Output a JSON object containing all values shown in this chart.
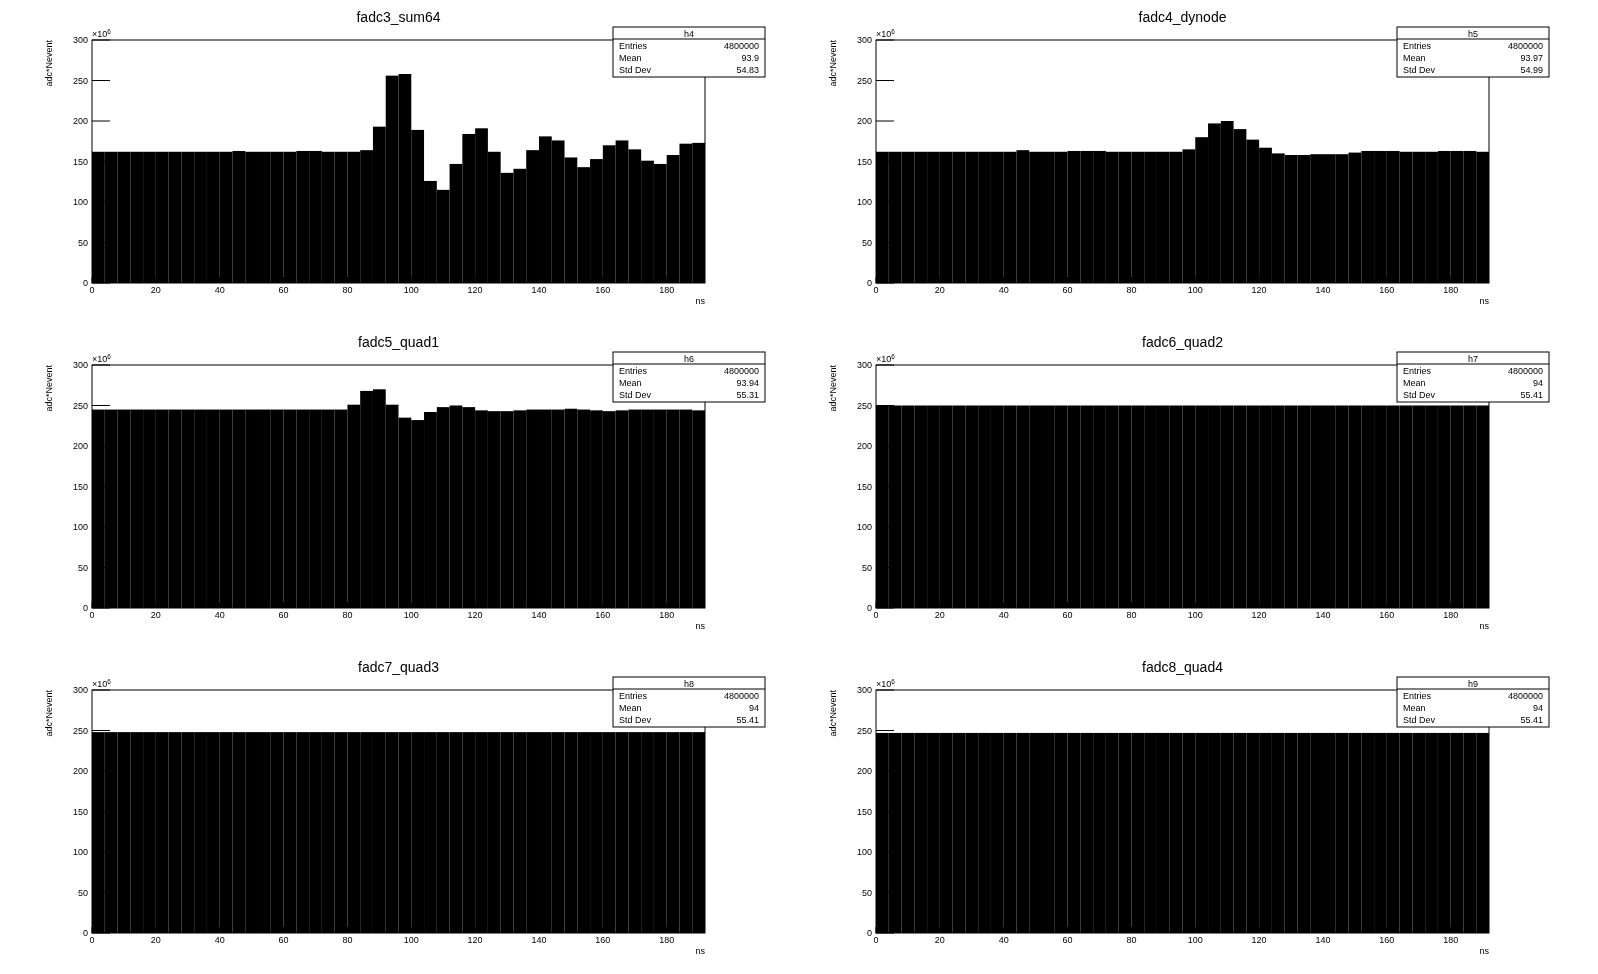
{
  "chart_data": [
    {
      "type": "histogram",
      "title": "fadc3_sum64",
      "xlabel": "ns",
      "ylabel": "adc*Nevent",
      "color": "#000000",
      "bins": [
        0,
        4,
        8,
        12,
        16,
        20,
        24,
        28,
        32,
        36,
        40,
        44,
        48,
        52,
        56,
        60,
        64,
        68,
        72,
        76,
        80,
        84,
        88,
        92,
        96,
        100,
        104,
        108,
        112,
        116,
        120,
        124,
        128,
        132,
        136,
        140,
        144,
        148,
        152,
        156,
        160,
        164,
        168,
        172,
        176,
        180,
        184,
        188,
        192
      ],
      "values": [
        162,
        162,
        162,
        162,
        162,
        162,
        162,
        162,
        162,
        162,
        162,
        163,
        162,
        162,
        162,
        162,
        163,
        163,
        162,
        162,
        162,
        164,
        193,
        256,
        258,
        189,
        126,
        115,
        147,
        184,
        191,
        162,
        136,
        141,
        164,
        181,
        176,
        155,
        143,
        153,
        170,
        176,
        165,
        151,
        147,
        158,
        172,
        173
      ],
      "xlim": [
        0,
        192
      ],
      "ylim": [
        0,
        300
      ],
      "xticks": [
        0,
        20,
        40,
        60,
        80,
        100,
        120,
        140,
        160,
        180
      ],
      "yticks": [
        0,
        50,
        100,
        150,
        200,
        250,
        300
      ],
      "annotations": [
        "×10$^{6}$",
        "h4",
        "Entries",
        "4800000",
        "Mean",
        "93.9",
        "Std Dev",
        "54.83"
      ]
    },
    {
      "type": "histogram",
      "title": "fadc4_dynode",
      "xlabel": "ns",
      "ylabel": "adc*Nevent",
      "color": "#000000",
      "bins": [
        0,
        4,
        8,
        12,
        16,
        20,
        24,
        28,
        32,
        36,
        40,
        44,
        48,
        52,
        56,
        60,
        64,
        68,
        72,
        76,
        80,
        84,
        88,
        92,
        96,
        100,
        104,
        108,
        112,
        116,
        120,
        124,
        128,
        132,
        136,
        140,
        144,
        148,
        152,
        156,
        160,
        164,
        168,
        172,
        176,
        180,
        184,
        188,
        192
      ],
      "values": [
        162,
        162,
        162,
        162,
        162,
        162,
        162,
        162,
        162,
        162,
        162,
        164,
        162,
        162,
        162,
        163,
        163,
        163,
        162,
        162,
        162,
        162,
        162,
        162,
        165,
        180,
        197,
        200,
        190,
        177,
        167,
        160,
        158,
        158,
        159,
        159,
        159,
        161,
        163,
        163,
        163,
        162,
        162,
        162,
        163,
        163,
        163,
        162
      ],
      "xlim": [
        0,
        192
      ],
      "ylim": [
        0,
        300
      ],
      "xticks": [
        0,
        20,
        40,
        60,
        80,
        100,
        120,
        140,
        160,
        180
      ],
      "yticks": [
        0,
        50,
        100,
        150,
        200,
        250,
        300
      ],
      "annotations": [
        "×10$^{6}$",
        "h5",
        "Entries",
        "4800000",
        "Mean",
        "93.97",
        "Std Dev",
        "54.99"
      ]
    },
    {
      "type": "histogram",
      "title": "fadc5_quad1",
      "xlabel": "ns",
      "ylabel": "adc*Nevent",
      "color": "#000000",
      "bins": [
        0,
        4,
        8,
        12,
        16,
        20,
        24,
        28,
        32,
        36,
        40,
        44,
        48,
        52,
        56,
        60,
        64,
        68,
        72,
        76,
        80,
        84,
        88,
        92,
        96,
        100,
        104,
        108,
        112,
        116,
        120,
        124,
        128,
        132,
        136,
        140,
        144,
        148,
        152,
        156,
        160,
        164,
        168,
        172,
        176,
        180,
        184,
        188,
        192
      ],
      "values": [
        245,
        245,
        245,
        245,
        245,
        245,
        245,
        245,
        245,
        245,
        245,
        245,
        245,
        245,
        245,
        245,
        245,
        245,
        245,
        245,
        251,
        268,
        270,
        251,
        235,
        232,
        242,
        248,
        250,
        248,
        244,
        243,
        243,
        244,
        245,
        245,
        245,
        246,
        245,
        244,
        243,
        244,
        245,
        245,
        245,
        245,
        245,
        244
      ],
      "xlim": [
        0,
        192
      ],
      "ylim": [
        0,
        300
      ],
      "xticks": [
        0,
        20,
        40,
        60,
        80,
        100,
        120,
        140,
        160,
        180
      ],
      "yticks": [
        0,
        50,
        100,
        150,
        200,
        250,
        300
      ],
      "annotations": [
        "×10$^{6}$",
        "h6",
        "Entries",
        "4800000",
        "Mean",
        "93.94",
        "Std Dev",
        "55.31"
      ]
    },
    {
      "type": "histogram",
      "title": "fadc6_quad2",
      "xlabel": "ns",
      "ylabel": "adc*Nevent",
      "color": "#000000",
      "bins": [
        0,
        4,
        8,
        12,
        16,
        20,
        24,
        28,
        32,
        36,
        40,
        44,
        48,
        52,
        56,
        60,
        64,
        68,
        72,
        76,
        80,
        84,
        88,
        92,
        96,
        100,
        104,
        108,
        112,
        116,
        120,
        124,
        128,
        132,
        136,
        140,
        144,
        148,
        152,
        156,
        160,
        164,
        168,
        172,
        176,
        180,
        184,
        188,
        192
      ],
      "values": [
        250,
        250,
        250,
        250,
        250,
        250,
        250,
        250,
        250,
        250,
        250,
        250,
        250,
        250,
        250,
        250,
        250,
        250,
        250,
        250,
        250,
        250,
        250,
        250,
        250,
        250,
        250,
        250,
        250,
        250,
        250,
        250,
        250,
        250,
        250,
        250,
        250,
        250,
        250,
        250,
        250,
        250,
        250,
        250,
        250,
        250,
        250,
        250
      ],
      "xlim": [
        0,
        192
      ],
      "ylim": [
        0,
        300
      ],
      "xticks": [
        0,
        20,
        40,
        60,
        80,
        100,
        120,
        140,
        160,
        180
      ],
      "yticks": [
        0,
        50,
        100,
        150,
        200,
        250,
        300
      ],
      "annotations": [
        "×10$^{6}$",
        "h7",
        "Entries",
        "4800000",
        "Mean",
        "94",
        "Std Dev",
        "55.41"
      ]
    },
    {
      "type": "histogram",
      "title": "fadc7_quad3",
      "xlabel": "ns",
      "ylabel": "adc*Nevent",
      "color": "#000000",
      "bins": [
        0,
        4,
        8,
        12,
        16,
        20,
        24,
        28,
        32,
        36,
        40,
        44,
        48,
        52,
        56,
        60,
        64,
        68,
        72,
        76,
        80,
        84,
        88,
        92,
        96,
        100,
        104,
        108,
        112,
        116,
        120,
        124,
        128,
        132,
        136,
        140,
        144,
        148,
        152,
        156,
        160,
        164,
        168,
        172,
        176,
        180,
        184,
        188,
        192
      ],
      "values": [
        248,
        248,
        248,
        248,
        248,
        248,
        248,
        248,
        248,
        248,
        248,
        248,
        248,
        248,
        248,
        248,
        248,
        248,
        248,
        248,
        248,
        248,
        248,
        248,
        248,
        248,
        248,
        248,
        248,
        248,
        248,
        248,
        248,
        248,
        248,
        248,
        248,
        248,
        248,
        248,
        248,
        248,
        248,
        248,
        248,
        248,
        248,
        248
      ],
      "xlim": [
        0,
        192
      ],
      "ylim": [
        0,
        300
      ],
      "xticks": [
        0,
        20,
        40,
        60,
        80,
        100,
        120,
        140,
        160,
        180
      ],
      "yticks": [
        0,
        50,
        100,
        150,
        200,
        250,
        300
      ],
      "annotations": [
        "×10$^{6}$",
        "h8",
        "Entries",
        "4800000",
        "Mean",
        "94",
        "Std Dev",
        "55.41"
      ]
    },
    {
      "type": "histogram",
      "title": "fadc8_quad4",
      "xlabel": "ns",
      "ylabel": "adc*Nevent",
      "color": "#000000",
      "bins": [
        0,
        4,
        8,
        12,
        16,
        20,
        24,
        28,
        32,
        36,
        40,
        44,
        48,
        52,
        56,
        60,
        64,
        68,
        72,
        76,
        80,
        84,
        88,
        92,
        96,
        100,
        104,
        108,
        112,
        116,
        120,
        124,
        128,
        132,
        136,
        140,
        144,
        148,
        152,
        156,
        160,
        164,
        168,
        172,
        176,
        180,
        184,
        188,
        192
      ],
      "values": [
        247,
        247,
        247,
        247,
        247,
        247,
        247,
        247,
        247,
        247,
        247,
        247,
        247,
        247,
        247,
        247,
        247,
        247,
        247,
        247,
        247,
        247,
        247,
        247,
        247,
        247,
        247,
        247,
        247,
        247,
        247,
        247,
        247,
        247,
        247,
        247,
        247,
        247,
        247,
        247,
        247,
        247,
        247,
        247,
        247,
        247,
        247,
        247
      ],
      "xlim": [
        0,
        192
      ],
      "ylim": [
        0,
        300
      ],
      "xticks": [
        0,
        20,
        40,
        60,
        80,
        100,
        120,
        140,
        160,
        180
      ],
      "yticks": [
        0,
        50,
        100,
        150,
        200,
        250,
        300
      ],
      "annotations": [
        "×10$^{6}$",
        "h9",
        "Entries",
        "4800000",
        "Mean",
        "94",
        "Std Dev",
        "55.41"
      ]
    }
  ]
}
